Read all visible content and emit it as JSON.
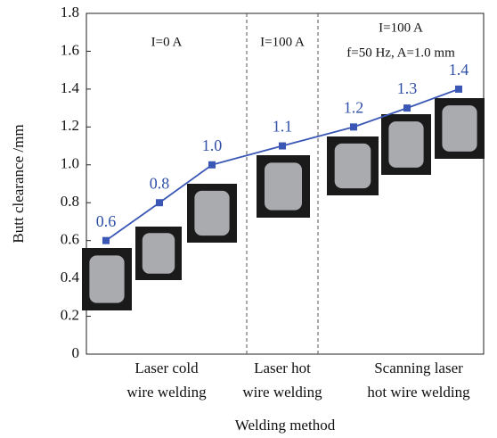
{
  "chart_data": {
    "type": "line",
    "y_label": "Butt clearance /mm",
    "x_label": "Welding method",
    "categories": [
      null,
      null,
      null,
      null,
      null,
      null,
      null
    ],
    "values": [
      0.6,
      0.8,
      1.0,
      1.1,
      1.2,
      1.3,
      1.4
    ],
    "value_labels": [
      "0.6",
      "0.8",
      "1.0",
      "1.1",
      "1.2",
      "1.3",
      "1.4"
    ],
    "color": "#3a57b5",
    "ylim": [
      0,
      1.8
    ],
    "yticks": [
      0,
      0.2,
      0.4,
      0.6,
      0.8,
      {
        "value": 1,
        "label": "1.0"
      },
      1.2,
      1.4,
      1.6,
      1.8
    ],
    "groups": [
      [
        "Laser cold",
        "wire welding"
      ],
      [
        "Laser hot",
        "wire welding"
      ],
      [
        "Scanning laser",
        "hot wire welding"
      ]
    ],
    "annotations": [
      "I=0 A",
      "I=100 A",
      "I=100 A",
      "f=50 Hz, A=1.0 mm"
    ]
  }
}
